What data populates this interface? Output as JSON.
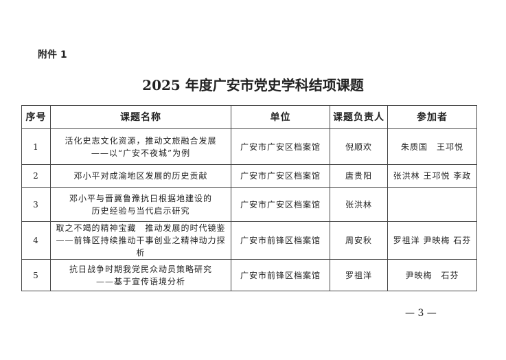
{
  "attachment": "附件 1",
  "title": "2025 年度广安市党史学科结项课题",
  "headers": [
    "序号",
    "课题名称",
    "单位",
    "课题负责人",
    "参加者"
  ],
  "rows": [
    {
      "no": "1",
      "name": [
        "活化史志文化资源，推动文旅融合发展",
        "——以“广安不夜城”为例"
      ],
      "unit": "广安市广安区档案馆",
      "lead": "倪顺欢",
      "members": "朱质国　王邛悦"
    },
    {
      "no": "2",
      "name": [
        "邓小平对成渝地区发展的历史贡献"
      ],
      "unit": "广安市广安区档案馆",
      "lead": "唐贵阳",
      "members": "张洪林 王邛悦 李政"
    },
    {
      "no": "3",
      "name": [
        "邓小平与晋冀鲁豫抗日根据地建设的",
        "历史经验与当代启示研究"
      ],
      "unit": "广安市广安区档案馆",
      "lead": "张洪林",
      "members": ""
    },
    {
      "no": "4",
      "name": [
        "取之不竭的精神宝藏　推动发展的时代镜鉴",
        "——前锋区持续推动干事创业之精神动力探析"
      ],
      "unit": "广安市前锋区档案馆",
      "lead": "周安秋",
      "members": "罗祖洋 尹映梅 石芬"
    },
    {
      "no": "5",
      "name": [
        "抗日战争时期我党民众动员策略研究",
        "——基于宣传语境分析"
      ],
      "unit": "广安市前锋区档案馆",
      "lead": "罗祖洋",
      "members": "尹映梅　石芬"
    }
  ],
  "page_number": "— 3 —"
}
